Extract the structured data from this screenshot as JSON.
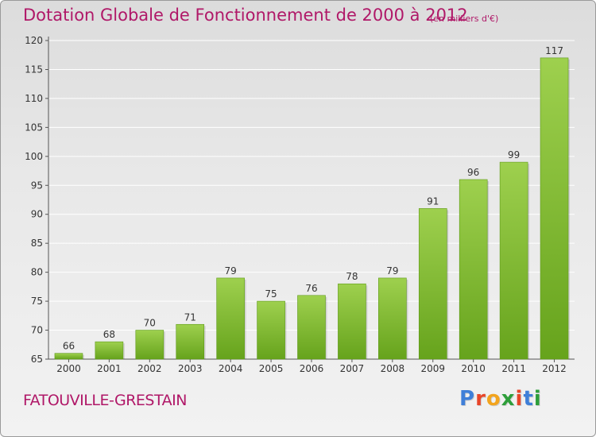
{
  "title": "Dotation Globale de Fonctionnement de 2000 à 2012",
  "subtitle": "(en milliers d'€)",
  "commune": "FATOUVILLE-GRESTAIN",
  "logo": {
    "text": "Proxiti",
    "letters": [
      "P",
      "r",
      "o",
      "x",
      "i",
      "t",
      "i"
    ],
    "colors": [
      "#3f7fd8",
      "#e8462a",
      "#f2a41e",
      "#2e9e3a",
      "#e8462a",
      "#3f7fd8",
      "#2e9e3a"
    ]
  },
  "colors": {
    "title": "#b01868",
    "bar_top": "#9ed04e",
    "bar_bottom": "#66a31c",
    "grid": "#ffffff"
  },
  "chart_data": {
    "type": "bar",
    "categories": [
      "2000",
      "2001",
      "2002",
      "2003",
      "2004",
      "2005",
      "2006",
      "2007",
      "2008",
      "2009",
      "2010",
      "2011",
      "2012"
    ],
    "values": [
      66,
      68,
      70,
      71,
      79,
      75,
      76,
      78,
      79,
      91,
      96,
      99,
      117
    ],
    "title": "Dotation Globale de Fonctionnement de 2000 à 2012",
    "xlabel": "",
    "ylabel": "",
    "ylim": [
      65,
      120
    ],
    "yticks": [
      65,
      70,
      75,
      80,
      85,
      90,
      95,
      100,
      105,
      110,
      115,
      120
    ],
    "grid": true
  }
}
